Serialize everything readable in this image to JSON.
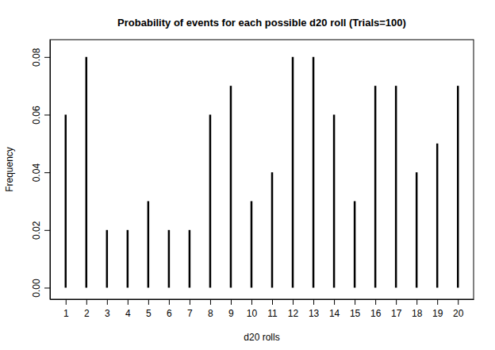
{
  "chart_data": {
    "type": "bar",
    "title": "Probability of events for each possible d20 roll (Trials=100)",
    "x_label": "d20 rolls",
    "y_label": "Frequency",
    "x": [
      1,
      2,
      3,
      4,
      5,
      6,
      7,
      8,
      9,
      10,
      11,
      12,
      13,
      14,
      15,
      16,
      17,
      18,
      19,
      20
    ],
    "values": [
      0.06,
      0.08,
      0.02,
      0.02,
      0.03,
      0.02,
      0.02,
      0.06,
      0.07,
      0.03,
      0.04,
      0.08,
      0.08,
      0.06,
      0.03,
      0.07,
      0.07,
      0.04,
      0.05,
      0.07
    ],
    "color": "#000000",
    "xlim": [
      0.24,
      20.76
    ],
    "xticks": [
      1,
      2,
      3,
      4,
      5,
      6,
      7,
      8,
      9,
      10,
      11,
      12,
      13,
      14,
      15,
      16,
      17,
      18,
      19,
      20
    ],
    "ylim": [
      -0.004,
      0.086
    ],
    "yticks": [
      {
        "value": 0,
        "label": "0.00"
      },
      0.02,
      0.04,
      0.06,
      0.08
    ],
    "grid": false
  }
}
